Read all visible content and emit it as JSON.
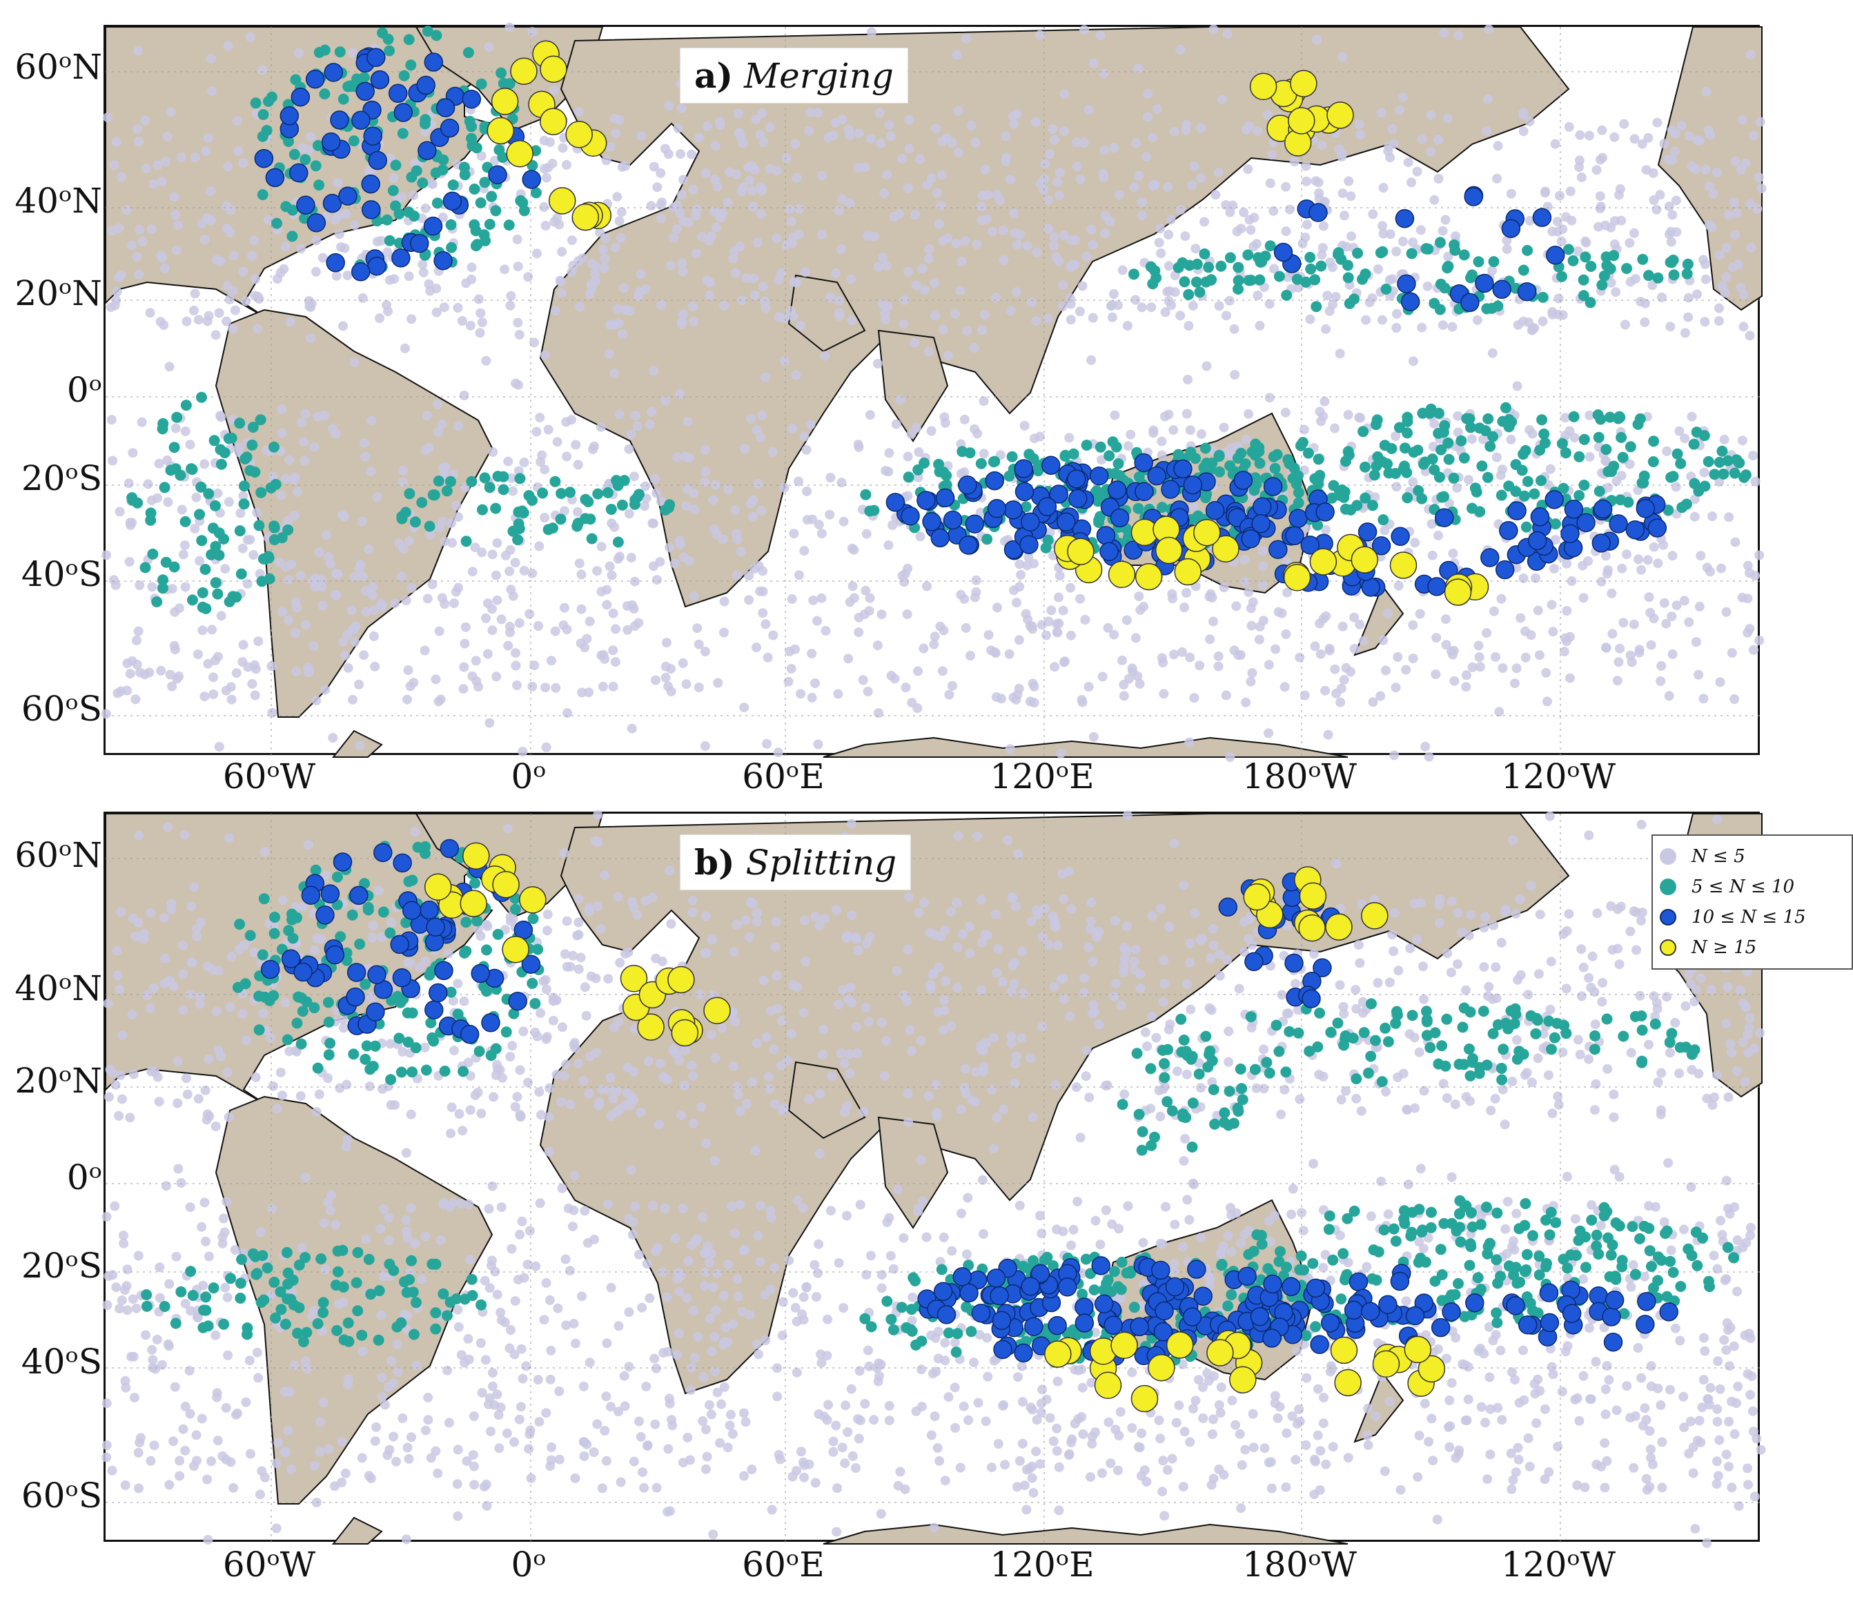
{
  "panels": [
    {
      "letter": "a)",
      "title": "Merging"
    },
    {
      "letter": "b)",
      "title": "Splitting"
    }
  ],
  "axes": {
    "y_ticks": [
      "60ᵒN",
      "40ᵒN",
      "20ᵒN",
      "0ᵒ",
      "20ᵒS",
      "40ᵒS",
      "60ᵒS"
    ],
    "x_ticks": [
      "60ᵒW",
      "0ᵒ",
      "60ᵒE",
      "120ᵒE",
      "180ᵒW",
      "120ᵒW"
    ]
  },
  "legend": [
    {
      "label": "N ≤ 5",
      "color": "#c9c8e3"
    },
    {
      "label": "5 ≤ N ≤ 10",
      "color": "#26a69a"
    },
    {
      "label": "10 ≤ N ≤ 15",
      "color": "#1e56d8"
    },
    {
      "label": "N ≥ 15",
      "color": "#f4ee27"
    }
  ],
  "colors": {
    "land": "#cdc2b0",
    "ocean": "#ffffff",
    "contour": "#8c8c8c"
  }
}
